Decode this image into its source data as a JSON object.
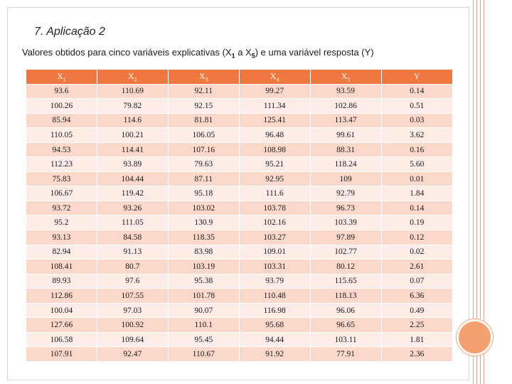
{
  "slide": {
    "title": "7. Aplicação 2",
    "subtitle": {
      "before": "Valores obtidos para cinco variáveis explicativas (X",
      "sub1": "1",
      "middle": " a X",
      "sub2": "5",
      "after": ") e uma variável resposta (Y)"
    }
  },
  "table": {
    "headers": [
      {
        "main": "X",
        "sub": "1"
      },
      {
        "main": "X",
        "sub": "2"
      },
      {
        "main": "X",
        "sub": "3"
      },
      {
        "main": "X",
        "sub": "4"
      },
      {
        "main": "X",
        "sub": "5"
      },
      {
        "main": "Y",
        "sub": ""
      }
    ],
    "rows": [
      [
        "93.6",
        "110.69",
        "92.11",
        "99.27",
        "93.59",
        "0.14"
      ],
      [
        "100.26",
        "79.82",
        "92.15",
        "111.34",
        "102.86",
        "0.51"
      ],
      [
        "85.94",
        "114.6",
        "81.81",
        "125.41",
        "113.47",
        "0.03"
      ],
      [
        "110.05",
        "100.21",
        "106.05",
        "96.48",
        "99.61",
        "3.62"
      ],
      [
        "94.53",
        "114.41",
        "107.16",
        "108.98",
        "88.31",
        "0.16"
      ],
      [
        "112.23",
        "93.89",
        "79.63",
        "95.21",
        "118.24",
        "5.60"
      ],
      [
        "75.83",
        "104.44",
        "87.11",
        "92.95",
        "109",
        "0.01"
      ],
      [
        "106.67",
        "119.42",
        "95.18",
        "111.6",
        "92.79",
        "1.84"
      ],
      [
        "93.72",
        "93.26",
        "103.02",
        "103.78",
        "96.73",
        "0.14"
      ],
      [
        "95.2",
        "111.05",
        "130.9",
        "102.16",
        "103.39",
        "0.19"
      ],
      [
        "93.13",
        "84.58",
        "118.35",
        "103.27",
        "97.89",
        "0.12"
      ],
      [
        "82.94",
        "91.13",
        "83.98",
        "109.01",
        "102.77",
        "0.02"
      ],
      [
        "108.41",
        "80.7",
        "103.19",
        "103.31",
        "80.12",
        "2.61"
      ],
      [
        "89.93",
        "97.6",
        "95.38",
        "93.79",
        "115.65",
        "0.07"
      ],
      [
        "112.86",
        "107.55",
        "101.78",
        "110.48",
        "118.13",
        "6.36"
      ],
      [
        "100.04",
        "97.03",
        "90.07",
        "116.98",
        "96.06",
        "0.49"
      ],
      [
        "127.66",
        "100.92",
        "110.1",
        "95.68",
        "96.65",
        "2.25"
      ],
      [
        "106.58",
        "109.64",
        "95.45",
        "94.44",
        "103.11",
        "1.81"
      ],
      [
        "107.91",
        "92.47",
        "110.67",
        "91.92",
        "77.91",
        "2.36"
      ]
    ]
  },
  "colors": {
    "header_bg": "#f07840",
    "row_odd": "#fbd8c9",
    "row_even": "#fdede6",
    "accent_circle": "#f4a070"
  }
}
